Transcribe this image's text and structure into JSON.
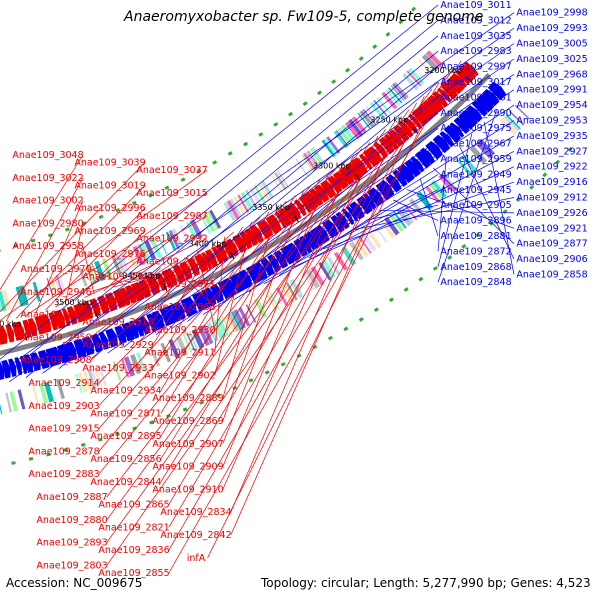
{
  "title": "Anaeromyxobacter sp. Fw109-5, complete genome",
  "accession": "Accession: NC_009675",
  "summary": "Topology: circular; Length: 5,277,990 bp; Genes: 4,523",
  "colors": {
    "plus_strand": "#0000ee",
    "minus_strand": "#ee0000",
    "backbone": "#808080",
    "gc_dots": "#33aa33"
  },
  "ticks": [
    {
      "label": "3600 kbp"
    },
    {
      "label": "3550 kbp"
    },
    {
      "label": "3500 kbp"
    },
    {
      "label": "3450 kbp"
    },
    {
      "label": "3400 kbp"
    },
    {
      "label": "3350 kbp"
    },
    {
      "label": "3300 kbp"
    },
    {
      "label": "3250 kbp"
    },
    {
      "label": "3200 kbp"
    }
  ],
  "right_labels": [
    "Anae109_3011",
    "Anae109_2998",
    "Anae109_3012",
    "Anae109_2993",
    "Anae109_3035",
    "Anae109_3005",
    "Anae109_2983",
    "Anae109_3025",
    "Anae109_2997",
    "Anae109_2968",
    "Anae109_3017",
    "Anae109_2991",
    "Anae109_2961",
    "Anae109_2954",
    "Anae109_2990",
    "Anae109_2953",
    "Anae109_2975",
    "Anae109_2935",
    "Anae109_2967",
    "Anae109_2927",
    "Anae109_2959",
    "Anae109_2922",
    "Anae109_2949",
    "Anae109_2916",
    "Anae109_2945",
    "Anae109_2912",
    "Anae109_2905",
    "Anae109_2926",
    "Anae109_2896",
    "Anae109_2921",
    "Anae109_2881",
    "Anae109_2877",
    "Anae109_2872",
    "Anae109_2906",
    "Anae109_2868",
    "Anae109_2858",
    "Anae109_2848"
  ],
  "left_labels": [
    "Anae109_3048",
    "Anae109_3039",
    "Anae109_3037",
    "Anae109_3022",
    "Anae109_3019",
    "Anae109_3015",
    "Anae109_3002",
    "Anae109_2996",
    "Anae109_2987",
    "Anae109_2980",
    "Anae109_2969",
    "Anae109_2992",
    "Anae109_2958",
    "Anae109_2976",
    "Anae109_2952",
    "Anae109_2970",
    "Anae109_2942",
    "Anae109_2971",
    "Anae109_2946",
    "tdh",
    "Anae109_2963",
    "Anae109_2940",
    "Anae109_2918",
    "Anae109_2930",
    "Anae109_2950",
    "Anae109_2929",
    "Anae109_2911",
    "Anae109_2908",
    "Anae109_2933",
    "Anae109_2902",
    "Anae109_2914",
    "Anae109_2934",
    "Anae109_2889",
    "Anae109_2903",
    "Anae109_2871",
    "Anae109_2869",
    "Anae109_2915",
    "Anae109_2895",
    "Anae109_2907",
    "Anae109_2878",
    "Anae109_2856",
    "Anae109_2909",
    "Anae109_2883",
    "Anae109_2844",
    "Anae109_2910",
    "Anae109_2887",
    "Anae109_2865",
    "Anae109_2834",
    "Anae109_2880",
    "Anae109_2821",
    "Anae109_2842",
    "Anae109_2893",
    "Anae109_2836",
    "infA",
    "Anae109_2803",
    "Anae109_2855"
  ]
}
